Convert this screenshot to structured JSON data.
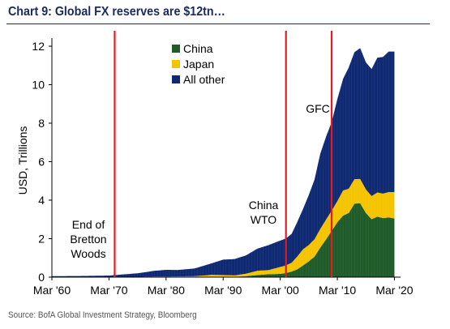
{
  "title": "Chart 9: Global FX reserves are $12tn…",
  "source": "Source: BofA Global Investment Strategy, Bloomberg",
  "colors": {
    "china": "#1f5c2a",
    "japan": "#f5c400",
    "other": "#0f2a73",
    "event_line": "#e31b23"
  },
  "chart_data": {
    "type": "area",
    "stacked": true,
    "title": "Chart 9: Global FX reserves are $12tn…",
    "xlabel": "",
    "ylabel": "USD, Trillions",
    "xlim": [
      1960,
      2020.5
    ],
    "ylim": [
      0,
      12
    ],
    "x_ticks": [
      1960,
      1970,
      1980,
      1990,
      2000,
      2010,
      2020
    ],
    "x_tick_labels": [
      "Mar '60",
      "Mar '70",
      "Mar '80",
      "Mar '90",
      "Mar '00",
      "Mar '10",
      "Mar '20"
    ],
    "y_ticks": [
      0,
      2,
      4,
      6,
      8,
      10,
      12
    ],
    "y_tick_labels": [
      "0",
      "2",
      "4",
      "6",
      "8",
      "10",
      "12"
    ],
    "grid": false,
    "legend": {
      "position": "top-center",
      "entries": [
        "China",
        "Japan",
        "All other"
      ]
    },
    "x": [
      1960,
      1965,
      1970,
      1972,
      1975,
      1978,
      1980,
      1982,
      1985,
      1988,
      1990,
      1992,
      1994,
      1996,
      1998,
      2000,
      2001,
      2002,
      2003,
      2004,
      2005,
      2006,
      2007,
      2008,
      2009,
      2010,
      2011,
      2012,
      2013,
      2014,
      2015,
      2016,
      2017,
      2018,
      2019,
      2020
    ],
    "series": [
      {
        "name": "China",
        "values": [
          0,
          0,
          0,
          0,
          0,
          0,
          0,
          0.01,
          0.02,
          0.02,
          0.03,
          0.02,
          0.05,
          0.11,
          0.15,
          0.17,
          0.21,
          0.29,
          0.41,
          0.61,
          0.82,
          1.07,
          1.53,
          1.95,
          2.4,
          2.85,
          3.2,
          3.33,
          3.82,
          3.84,
          3.33,
          3.01,
          3.14,
          3.07,
          3.1,
          3.05
        ]
      },
      {
        "name": "Japan",
        "values": [
          0,
          0,
          0,
          0.01,
          0.02,
          0.03,
          0.03,
          0.03,
          0.03,
          0.1,
          0.08,
          0.07,
          0.13,
          0.22,
          0.22,
          0.36,
          0.4,
          0.46,
          0.67,
          0.84,
          0.85,
          0.9,
          0.97,
          1.03,
          1.05,
          1.1,
          1.3,
          1.27,
          1.27,
          1.26,
          1.23,
          1.2,
          1.26,
          1.27,
          1.32,
          1.37
        ]
      },
      {
        "name": "All other",
        "values": [
          0.05,
          0.06,
          0.08,
          0.12,
          0.18,
          0.3,
          0.35,
          0.33,
          0.4,
          0.6,
          0.8,
          0.85,
          0.95,
          1.15,
          1.3,
          1.37,
          1.4,
          1.5,
          1.8,
          2.1,
          2.6,
          3.1,
          3.9,
          4.3,
          4.6,
          5.3,
          5.8,
          6.3,
          6.6,
          6.8,
          6.6,
          6.6,
          7.0,
          7.1,
          7.3,
          7.3
        ]
      }
    ],
    "events": [
      {
        "x": 1971,
        "label": [
          "End of",
          "Bretton",
          "Woods"
        ]
      },
      {
        "x": 2001,
        "label": [
          "China",
          "WTO"
        ]
      },
      {
        "x": 2009,
        "label": [
          "GFC"
        ]
      }
    ]
  }
}
